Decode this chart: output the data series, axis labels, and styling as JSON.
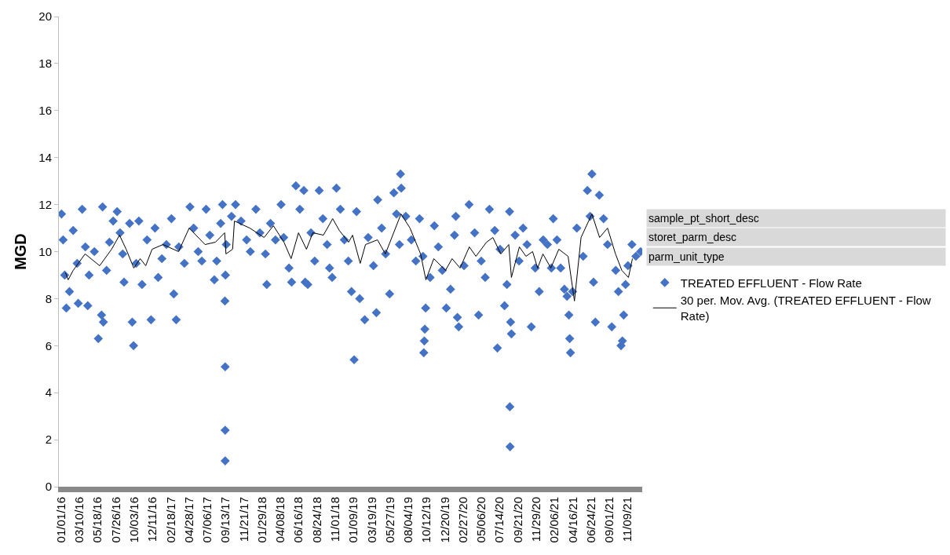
{
  "chart_data": {
    "type": "scatter",
    "ylabel": "MGD",
    "ylim": [
      0,
      20
    ],
    "yticks": [
      0,
      2,
      4,
      6,
      8,
      10,
      12,
      14,
      16,
      18,
      20
    ],
    "xlim": [
      "2015-12-23",
      "2022-01-03"
    ],
    "xticks": [
      {
        "value": "2016-01-01",
        "label": "01/01/16"
      },
      {
        "value": "2016-03-10",
        "label": "03/10/16"
      },
      {
        "value": "2016-05-18",
        "label": "05/18/16"
      },
      {
        "value": "2016-07-26",
        "label": "07/26/16"
      },
      {
        "value": "2016-10-03",
        "label": "10/03/16"
      },
      {
        "value": "2016-12-11",
        "label": "12/11/16"
      },
      {
        "value": "2017-02-18",
        "label": "02/18/17"
      },
      {
        "value": "2017-04-28",
        "label": "04/28/17"
      },
      {
        "value": "2017-07-06",
        "label": "07/06/17"
      },
      {
        "value": "2017-09-13",
        "label": "09/13/17"
      },
      {
        "value": "2017-11-21",
        "label": "11/21/17"
      },
      {
        "value": "2018-01-29",
        "label": "01/29/18"
      },
      {
        "value": "2018-04-08",
        "label": "04/08/18"
      },
      {
        "value": "2018-06-16",
        "label": "06/16/18"
      },
      {
        "value": "2018-08-24",
        "label": "08/24/18"
      },
      {
        "value": "2018-11-01",
        "label": "11/01/18"
      },
      {
        "value": "2019-01-09",
        "label": "01/09/19"
      },
      {
        "value": "2019-03-19",
        "label": "03/19/19"
      },
      {
        "value": "2019-05-27",
        "label": "05/27/19"
      },
      {
        "value": "2019-08-04",
        "label": "08/04/19"
      },
      {
        "value": "2019-10-12",
        "label": "10/12/19"
      },
      {
        "value": "2019-12-20",
        "label": "12/20/19"
      },
      {
        "value": "2020-02-27",
        "label": "02/27/20"
      },
      {
        "value": "2020-05-06",
        "label": "05/06/20"
      },
      {
        "value": "2020-07-14",
        "label": "07/14/20"
      },
      {
        "value": "2020-09-21",
        "label": "09/21/20"
      },
      {
        "value": "2020-11-29",
        "label": "11/29/20"
      },
      {
        "value": "2021-02-06",
        "label": "02/06/21"
      },
      {
        "value": "2021-04-16",
        "label": "04/16/21"
      },
      {
        "value": "2021-06-24",
        "label": "06/24/21"
      },
      {
        "value": "2021-09-01",
        "label": "09/01/21"
      },
      {
        "value": "2021-11-09",
        "label": "11/09/21"
      }
    ],
    "legend": "right",
    "annotations": [
      "sample_pt_short_desc",
      "storet_parm_desc",
      "parm_unit_type"
    ],
    "series": [
      {
        "name": "TREATED EFFLUENT - Flow Rate",
        "marker": "diamond",
        "color": "#4472c4",
        "x": [
          "2016-01-02",
          "2016-01-08",
          "2016-01-14",
          "2016-01-20",
          "2016-02-01",
          "2016-02-15",
          "2016-03-01",
          "2016-03-05",
          "2016-03-20",
          "2016-04-01",
          "2016-04-10",
          "2016-04-15",
          "2016-05-05",
          "2016-05-20",
          "2016-06-01",
          "2016-06-08",
          "2016-06-05",
          "2016-06-20",
          "2016-07-01",
          "2016-07-15",
          "2016-07-30",
          "2016-08-10",
          "2016-08-20",
          "2016-08-25",
          "2016-09-15",
          "2016-09-25",
          "2016-09-30",
          "2016-10-10",
          "2016-10-20",
          "2016-11-01",
          "2016-11-20",
          "2016-12-05",
          "2016-12-20",
          "2017-01-01",
          "2017-01-15",
          "2017-02-01",
          "2017-02-20",
          "2017-03-01",
          "2017-03-10",
          "2017-03-20",
          "2017-04-10",
          "2017-05-01",
          "2017-05-15",
          "2017-06-01",
          "2017-06-15",
          "2017-07-01",
          "2017-07-15",
          "2017-08-01",
          "2017-08-10",
          "2017-08-25",
          "2017-09-01",
          "2017-09-10",
          "2017-09-11",
          "2017-09-11",
          "2017-09-11",
          "2017-09-12",
          "2017-09-15",
          "2017-10-05",
          "2017-10-20",
          "2017-11-10",
          "2017-12-01",
          "2017-12-15",
          "2018-01-05",
          "2018-01-20",
          "2018-02-10",
          "2018-02-15",
          "2018-03-01",
          "2018-03-20",
          "2018-04-10",
          "2018-04-20",
          "2018-05-10",
          "2018-05-20",
          "2018-06-05",
          "2018-06-20",
          "2018-07-05",
          "2018-07-10",
          "2018-07-20",
          "2018-08-01",
          "2018-08-15",
          "2018-09-01",
          "2018-09-15",
          "2018-10-01",
          "2018-10-10",
          "2018-10-20",
          "2018-11-05",
          "2018-11-20",
          "2018-12-05",
          "2018-12-20",
          "2019-01-01",
          "2019-01-11",
          "2019-01-20",
          "2019-02-01",
          "2019-02-20",
          "2019-03-05",
          "2019-03-25",
          "2019-04-05",
          "2019-04-10",
          "2019-04-25",
          "2019-05-10",
          "2019-05-25",
          "2019-06-10",
          "2019-06-20",
          "2019-07-01",
          "2019-07-05",
          "2019-07-08",
          "2019-07-25",
          "2019-08-15",
          "2019-09-01",
          "2019-09-15",
          "2019-09-28",
          "2019-10-01",
          "2019-10-03",
          "2019-10-05",
          "2019-10-08",
          "2019-10-25",
          "2019-11-10",
          "2019-11-25",
          "2019-12-10",
          "2019-12-25",
          "2020-01-10",
          "2020-01-25",
          "2020-01-30",
          "2020-02-05",
          "2020-02-10",
          "2020-03-01",
          "2020-03-20",
          "2020-04-10",
          "2020-04-25",
          "2020-05-05",
          "2020-05-20",
          "2020-06-05",
          "2020-06-25",
          "2020-07-05",
          "2020-07-15",
          "2020-08-01",
          "2020-08-10",
          "2020-08-20",
          "2020-08-21",
          "2020-08-22",
          "2020-08-24",
          "2020-08-27",
          "2020-09-10",
          "2020-09-25",
          "2020-10-10",
          "2020-10-25",
          "2020-11-10",
          "2020-11-25",
          "2020-12-10",
          "2020-12-25",
          "2021-01-10",
          "2021-01-25",
          "2021-02-01",
          "2021-02-15",
          "2021-03-01",
          "2021-03-15",
          "2021-03-25",
          "2021-04-01",
          "2021-04-04",
          "2021-04-07",
          "2021-04-15",
          "2021-05-01",
          "2021-05-25",
          "2021-06-10",
          "2021-06-20",
          "2021-06-27",
          "2021-07-03",
          "2021-07-10",
          "2021-07-25",
          "2021-08-10",
          "2021-08-25",
          "2021-09-10",
          "2021-09-25",
          "2021-10-05",
          "2021-10-15",
          "2021-10-20",
          "2021-10-25",
          "2021-11-01",
          "2021-11-10",
          "2021-11-25",
          "2021-12-10",
          "2021-12-28"
        ],
        "values": [
          11.6,
          10.5,
          9.0,
          7.6,
          8.3,
          10.9,
          9.5,
          7.8,
          11.8,
          10.2,
          7.7,
          9.0,
          10.0,
          6.3,
          7.3,
          7.0,
          11.9,
          9.2,
          10.4,
          11.3,
          11.7,
          10.8,
          9.9,
          8.7,
          11.2,
          7.0,
          6.0,
          9.5,
          11.3,
          8.6,
          10.5,
          7.1,
          11.0,
          8.9,
          9.7,
          10.3,
          11.4,
          8.2,
          7.1,
          10.2,
          9.5,
          11.9,
          11.0,
          10.0,
          9.6,
          11.8,
          10.7,
          8.8,
          9.6,
          11.2,
          12.0,
          7.9,
          5.1,
          2.4,
          1.1,
          9.0,
          10.3,
          11.5,
          12.0,
          11.3,
          10.5,
          10.0,
          11.8,
          10.8,
          9.9,
          8.6,
          11.2,
          10.5,
          12.0,
          10.6,
          9.3,
          8.7,
          12.8,
          11.8,
          12.6,
          8.7,
          8.6,
          10.8,
          9.6,
          12.6,
          11.4,
          10.3,
          9.3,
          8.9,
          12.7,
          11.8,
          10.5,
          9.6,
          8.3,
          5.4,
          11.7,
          8.0,
          7.1,
          10.6,
          9.4,
          7.4,
          12.2,
          11.0,
          9.9,
          8.2,
          12.5,
          11.6,
          10.3,
          13.3,
          12.7,
          11.5,
          10.5,
          9.6,
          11.4,
          9.8,
          5.7,
          6.2,
          6.7,
          7.6,
          8.9,
          11.1,
          10.2,
          9.2,
          7.6,
          8.4,
          10.7,
          11.5,
          7.2,
          6.8,
          9.4,
          12.0,
          10.8,
          7.3,
          9.6,
          8.9,
          11.8,
          10.9,
          5.9,
          10.1,
          7.7,
          8.6,
          11.7,
          3.4,
          1.7,
          7.0,
          6.5,
          10.7,
          9.6,
          11.0,
          10.3,
          6.8,
          9.3,
          8.3,
          10.5,
          10.3,
          9.3,
          11.4,
          10.5,
          9.3,
          8.4,
          8.1,
          7.3,
          6.3,
          5.7,
          8.3,
          11.0,
          9.8,
          12.6,
          11.5,
          13.3,
          8.7,
          7.0,
          12.4,
          11.4,
          10.3,
          6.8,
          9.2,
          8.3,
          6.0,
          6.2,
          7.3,
          8.6,
          9.4,
          10.3,
          9.8,
          10.0
        ]
      },
      {
        "name": "30 per. Mov. Avg. (TREATED EFFLUENT - Flow Rate)",
        "type": "line",
        "marker": "none",
        "line_style": "solid",
        "color": "#000000",
        "x": [
          "2016-01-17",
          "2016-01-27",
          "2016-02-15",
          "2016-03-31",
          "2016-05-25",
          "2016-07-09",
          "2016-08-08",
          "2016-09-02",
          "2016-10-01",
          "2016-10-25",
          "2016-11-15",
          "2016-12-09",
          "2017-01-19",
          "2017-03-19",
          "2017-04-28",
          "2017-06-27",
          "2017-08-05",
          "2017-09-09",
          "2017-09-14",
          "2017-10-09",
          "2017-10-16",
          "2017-12-13",
          "2018-02-05",
          "2018-03-12",
          "2018-04-21",
          "2018-05-18",
          "2018-06-15",
          "2018-07-15",
          "2018-08-08",
          "2018-09-17",
          "2018-10-22",
          "2018-11-16",
          "2018-12-21",
          "2019-01-05",
          "2019-02-03",
          "2019-02-23",
          "2019-04-09",
          "2019-05-09",
          "2019-07-07",
          "2019-08-10",
          "2019-09-19",
          "2019-10-09",
          "2019-11-08",
          "2019-12-22",
          "2020-01-16",
          "2020-02-15",
          "2020-03-21",
          "2020-04-15",
          "2020-05-25",
          "2020-06-18",
          "2020-07-18",
          "2020-08-17",
          "2020-08-27",
          "2020-09-26",
          "2020-10-21",
          "2020-11-15",
          "2020-12-04",
          "2020-12-24",
          "2021-01-23",
          "2021-02-22",
          "2021-03-29",
          "2021-04-22",
          "2021-05-17",
          "2021-06-27",
          "2021-07-26",
          "2021-08-25",
          "2021-09-24",
          "2021-10-18",
          "2021-11-12",
          "2021-11-27"
        ],
        "values": [
          9.1,
          8.8,
          9.2,
          9.9,
          9.4,
          10.1,
          10.7,
          10.1,
          9.3,
          9.7,
          9.4,
          10.1,
          10.3,
          10.0,
          11.0,
          10.3,
          10.4,
          10.8,
          9.9,
          10.1,
          11.3,
          11.0,
          10.6,
          11.1,
          10.4,
          9.7,
          10.8,
          10.1,
          10.8,
          10.7,
          11.4,
          10.9,
          10.4,
          10.7,
          9.5,
          10.3,
          10.5,
          9.9,
          11.6,
          11.0,
          9.9,
          8.8,
          9.7,
          9.2,
          9.7,
          9.3,
          10.2,
          9.8,
          10.4,
          10.6,
          9.9,
          10.3,
          8.9,
          10.2,
          9.8,
          10.0,
          9.3,
          9.9,
          9.3,
          10.1,
          9.8,
          7.9,
          10.6,
          11.6,
          10.6,
          11.0,
          9.9,
          9.2,
          8.9,
          9.7
        ]
      }
    ]
  }
}
